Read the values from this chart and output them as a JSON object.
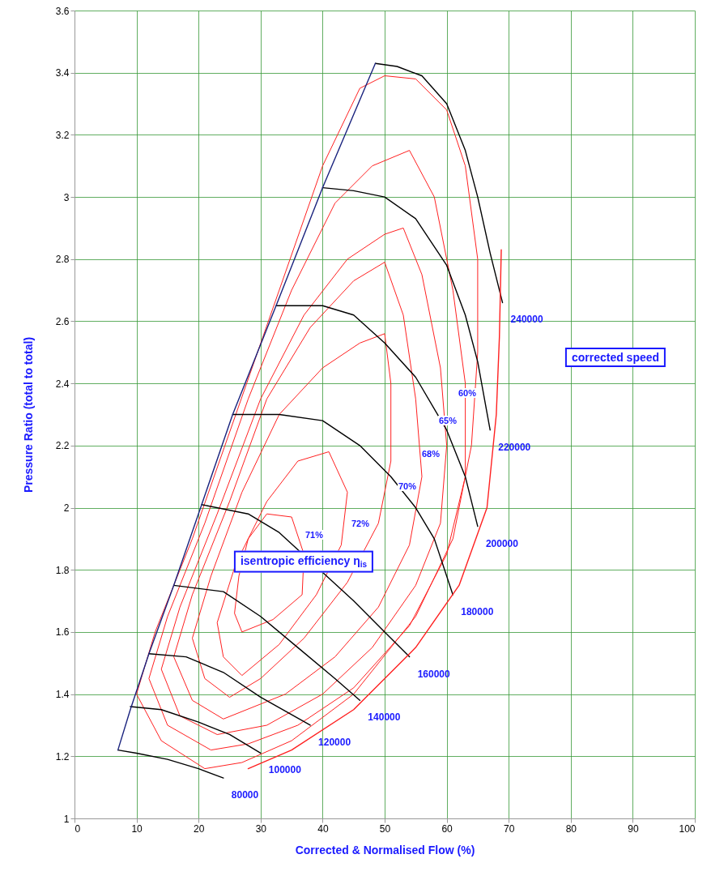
{
  "chart_data": {
    "type": "line",
    "xlabel": "Corrected & Normalised Flow (%)",
    "ylabel": "Pressure Ratio (total to total)",
    "xlim": [
      0,
      100
    ],
    "xticks": [
      0,
      10,
      20,
      30,
      40,
      50,
      60,
      70,
      80,
      90,
      100
    ],
    "ylim": [
      1,
      3.6
    ],
    "yticks": [
      1,
      1.2,
      1.4,
      1.6,
      1.8,
      2,
      2.2,
      2.4,
      2.6,
      2.8,
      3,
      3.2,
      3.4,
      3.6
    ],
    "grid": true,
    "series": [
      {
        "name": "80000",
        "color": "#000000",
        "x": [
          7,
          10,
          15,
          20,
          24
        ],
        "values": [
          1.22,
          1.21,
          1.19,
          1.16,
          1.13
        ]
      },
      {
        "name": "100000",
        "color": "#000000",
        "x": [
          9,
          14,
          20,
          25,
          30
        ],
        "values": [
          1.36,
          1.35,
          1.31,
          1.27,
          1.21
        ]
      },
      {
        "name": "120000",
        "color": "#000000",
        "x": [
          12,
          18,
          24,
          30,
          38
        ],
        "values": [
          1.53,
          1.52,
          1.47,
          1.39,
          1.3
        ]
      },
      {
        "name": "140000",
        "color": "#000000",
        "x": [
          16,
          24,
          30,
          36,
          42,
          46
        ],
        "values": [
          1.75,
          1.73,
          1.65,
          1.55,
          1.45,
          1.38
        ]
      },
      {
        "name": "160000",
        "color": "#000000",
        "x": [
          20.5,
          28,
          33,
          45,
          50,
          54
        ],
        "values": [
          2.01,
          1.98,
          1.92,
          1.7,
          1.6,
          1.52
        ]
      },
      {
        "name": "180000",
        "color": "#000000",
        "x": [
          25.5,
          33,
          40,
          46,
          51,
          55,
          58,
          61
        ],
        "values": [
          2.3,
          2.3,
          2.28,
          2.2,
          2.1,
          2,
          1.9,
          1.72
        ]
      },
      {
        "name": "200000",
        "color": "#000000",
        "x": [
          32.5,
          40,
          45,
          50,
          55,
          60,
          63,
          65
        ],
        "values": [
          2.65,
          2.65,
          2.62,
          2.53,
          2.42,
          2.25,
          2.1,
          1.94
        ]
      },
      {
        "name": "220000",
        "color": "#000000",
        "x": [
          40,
          45,
          50,
          55,
          60,
          63,
          65,
          67
        ],
        "values": [
          3.03,
          3.02,
          3,
          2.93,
          2.78,
          2.62,
          2.47,
          2.25
        ]
      },
      {
        "name": "240000",
        "color": "#000000",
        "x": [
          48.5,
          52,
          56,
          60,
          63,
          65,
          67,
          69
        ],
        "values": [
          3.43,
          3.42,
          3.39,
          3.3,
          3.15,
          3,
          2.82,
          2.66
        ]
      },
      {
        "color": "#ff2020",
        "x": [
          28,
          35,
          45,
          55,
          62,
          66.5,
          68,
          68.5,
          68.8
        ],
        "values": [
          1.16,
          1.22,
          1.35,
          1.55,
          1.75,
          2,
          2.3,
          2.55,
          2.83
        ]
      },
      {
        "color": "#1a237e",
        "x": [
          7,
          9,
          12,
          16,
          20.5,
          25.5,
          32.5,
          40,
          48.5
        ],
        "values": [
          1.22,
          1.35,
          1.53,
          1.75,
          2.01,
          2.3,
          2.65,
          3.03,
          3.43
        ]
      }
    ],
    "annotations": [
      "60%",
      "65%",
      "68%",
      "70%",
      "72%",
      "71%",
      "isentropic efficiency η$_{is}$",
      "corrected speed"
    ]
  }
}
